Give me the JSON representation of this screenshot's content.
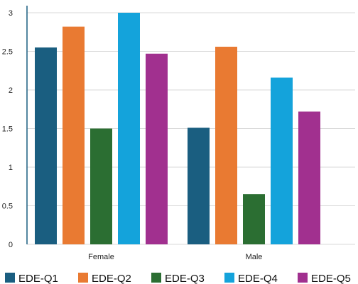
{
  "chart_data": {
    "type": "bar",
    "categories": [
      "Female",
      "Male"
    ],
    "series": [
      {
        "name": "EDE-Q1",
        "values": [
          2.55,
          1.51
        ]
      },
      {
        "name": "EDE-Q2",
        "values": [
          2.82,
          2.56
        ]
      },
      {
        "name": "EDE-Q3",
        "values": [
          1.5,
          0.65
        ]
      },
      {
        "name": "EDE-Q4",
        "values": [
          3.0,
          2.16
        ]
      },
      {
        "name": "EDE-Q5",
        "values": [
          2.47,
          1.72
        ]
      }
    ],
    "yticks": [
      "0",
      "0.5",
      "1",
      "1.5",
      "2",
      "2.5",
      "3"
    ],
    "ylim": [
      0,
      3
    ],
    "grid": true,
    "legend_position": "bottom",
    "colors": [
      "#1a5e80",
      "#e97a32",
      "#2b6e32",
      "#14a3db",
      "#a1308f"
    ]
  }
}
